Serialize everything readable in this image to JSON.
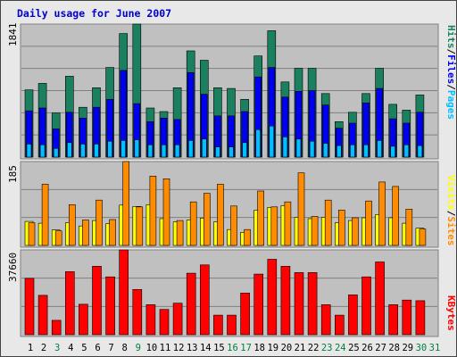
{
  "chart_data": [
    {
      "type": "bar",
      "title": "Daily usage for June 2007",
      "categories": [
        "1",
        "2",
        "3",
        "4",
        "5",
        "6",
        "7",
        "8",
        "9",
        "10",
        "11",
        "12",
        "13",
        "14",
        "15",
        "16",
        "17",
        "18",
        "19",
        "20",
        "21",
        "22",
        "23",
        "24",
        "25",
        "26",
        "27",
        "28",
        "29",
        "30",
        "31"
      ],
      "weekend_days": [
        "3",
        "9",
        "16",
        "17",
        "23",
        "24",
        "30",
        "31"
      ],
      "ylabel_max": "1841",
      "legend": [
        "Pages",
        "Files",
        "Hits"
      ],
      "ylim": [
        0,
        1841
      ],
      "series": [
        {
          "name": "Hits",
          "color": "#1a8060",
          "values": [
            930,
            1020,
            610,
            1120,
            690,
            960,
            1240,
            1710,
            1841,
            680,
            630,
            960,
            1470,
            1340,
            960,
            950,
            800,
            1400,
            1750,
            1040,
            1230,
            1230,
            880,
            490,
            620,
            880,
            1230,
            730,
            650,
            860,
            0
          ]
        },
        {
          "name": "Files",
          "color": "#0000ee",
          "values": [
            640,
            680,
            390,
            620,
            540,
            690,
            800,
            1200,
            740,
            490,
            540,
            520,
            1170,
            870,
            570,
            570,
            630,
            1110,
            1240,
            830,
            910,
            920,
            720,
            400,
            470,
            750,
            950,
            530,
            470,
            620,
            0
          ]
        },
        {
          "name": "Pages",
          "color": "#00bfff",
          "values": [
            180,
            170,
            120,
            200,
            180,
            180,
            220,
            230,
            240,
            170,
            170,
            170,
            230,
            250,
            140,
            140,
            200,
            380,
            430,
            280,
            250,
            220,
            190,
            160,
            170,
            170,
            230,
            150,
            170,
            160,
            0
          ]
        }
      ]
    },
    {
      "type": "bar",
      "ylabel_max": "185",
      "legend": [
        "Sites",
        "Visits"
      ],
      "ylim": [
        0,
        185
      ],
      "series": [
        {
          "name": "Visits",
          "color": "#ffff00",
          "values": [
            53,
            49,
            34,
            50,
            43,
            55,
            48,
            89,
            86,
            90,
            59,
            52,
            56,
            60,
            52,
            35,
            29,
            78,
            84,
            88,
            62,
            59,
            62,
            50,
            55,
            61,
            68,
            61,
            49,
            38,
            0
          ]
        },
        {
          "name": "Sites",
          "color": "#ff8c00",
          "values": [
            50,
            135,
            32,
            90,
            56,
            100,
            57,
            185,
            85,
            153,
            147,
            55,
            96,
            115,
            135,
            87,
            35,
            120,
            85,
            96,
            160,
            64,
            100,
            78,
            61,
            98,
            140,
            130,
            80,
            36,
            0
          ]
        }
      ]
    },
    {
      "type": "bar",
      "ylabel_max": "37660",
      "legend": [
        "KBytes"
      ],
      "ylim": [
        0,
        37660
      ],
      "series": [
        {
          "name": "KBytes",
          "color": "#ff0000",
          "values": [
            25000,
            17500,
            6400,
            28000,
            13500,
            30400,
            25700,
            37660,
            20100,
            13300,
            11200,
            14000,
            27300,
            31000,
            8700,
            8700,
            18500,
            26900,
            33500,
            30400,
            27600,
            27600,
            13300,
            8700,
            17700,
            25700,
            32300,
            13300,
            15400,
            15100,
            0
          ]
        }
      ]
    }
  ]
}
